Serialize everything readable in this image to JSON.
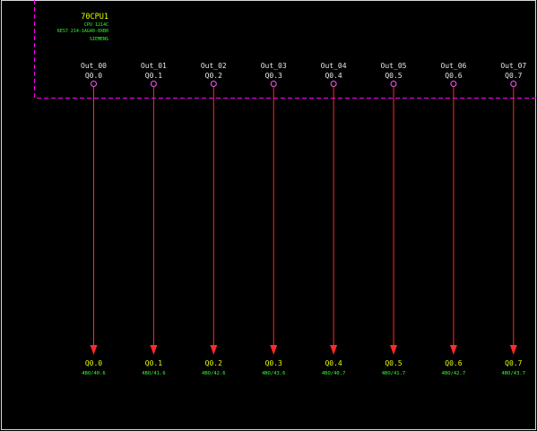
{
  "module": {
    "name": "70CPU1",
    "type": "CPU 1214C",
    "order_number": "6ES7 214-1AG40-0XB0",
    "vendor": "SIEMENS"
  },
  "colors": {
    "background": "#000000",
    "module_frame": "#ff00ff",
    "wire": "#ff2a2a",
    "terminal": "#ff55ff",
    "pin_label": "#e8e8e8",
    "module_text": "#e6ff00",
    "wire_label": "#e6ff00",
    "wire_ref": "#32ff32",
    "border": "#d8d8d8"
  },
  "outputs": [
    {
      "name": "Out_00",
      "address": "Q0.0",
      "end_label": "Q0.0",
      "ref": "4BO/40.6"
    },
    {
      "name": "Out_01",
      "address": "Q0.1",
      "end_label": "Q0.1",
      "ref": "4BO/41.6"
    },
    {
      "name": "Out_02",
      "address": "Q0.2",
      "end_label": "Q0.2",
      "ref": "4BO/42.6"
    },
    {
      "name": "Out_03",
      "address": "Q0.3",
      "end_label": "Q0.3",
      "ref": "4BO/43.6"
    },
    {
      "name": "Out_04",
      "address": "Q0.4",
      "end_label": "Q0.4",
      "ref": "4BO/40.7"
    },
    {
      "name": "Out_05",
      "address": "Q0.5",
      "end_label": "Q0.5",
      "ref": "4BO/41.7"
    },
    {
      "name": "Out_06",
      "address": "Q0.6",
      "end_label": "Q0.6",
      "ref": "4BO/42.7"
    },
    {
      "name": "Out_07",
      "address": "Q0.7",
      "end_label": "Q0.7",
      "ref": "4BO/43.7"
    }
  ]
}
